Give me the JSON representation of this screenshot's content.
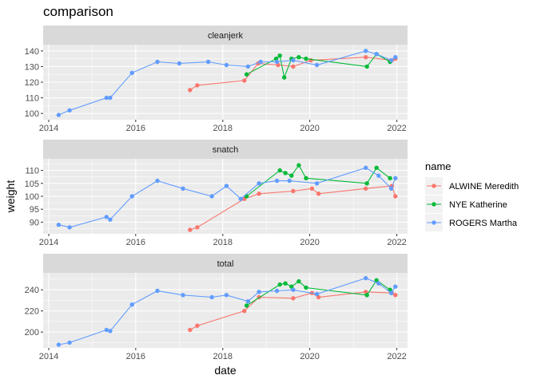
{
  "chart_data": {
    "type": "line",
    "title": "comparison",
    "xlabel": "date",
    "ylabel": "weight",
    "x_ticks": [
      "2014",
      "2016",
      "2018",
      "2020",
      "2022"
    ],
    "xlim": [
      "2013-11-15",
      "2022-04-01"
    ],
    "grid": true,
    "legend": {
      "title": "name",
      "placement": "right"
    },
    "series_styles": [
      {
        "name": "ALWINE Meredith",
        "color": "#F8766D"
      },
      {
        "name": "NYE Katherine",
        "color": "#00BA38"
      },
      {
        "name": "ROGERS Martha",
        "color": "#619CFF"
      }
    ],
    "panels": [
      {
        "strip": "cleanjerk",
        "ylim": [
          96,
          144
        ],
        "y_ticks": [
          100,
          110,
          120,
          130,
          140
        ],
        "series": [
          {
            "name": "ALWINE Meredith",
            "points": [
              [
                "2017-04-01",
                115
              ],
              [
                "2017-06-01",
                118
              ],
              [
                "2018-07-01",
                121
              ],
              [
                "2018-10-25",
                132
              ],
              [
                "2019-04-10",
                131
              ],
              [
                "2019-08-15",
                130
              ],
              [
                "2020-01-10",
                134
              ],
              [
                "2021-04-15",
                136
              ],
              [
                "2021-11-20",
                134
              ],
              [
                "2021-12-20",
                135
              ]
            ]
          },
          {
            "name": "NYE Katherine",
            "points": [
              [
                "2018-07-20",
                125
              ],
              [
                "2019-03-25",
                135
              ],
              [
                "2019-04-25",
                137
              ],
              [
                "2019-06-01",
                123
              ],
              [
                "2019-08-01",
                135
              ],
              [
                "2019-10-01",
                136
              ],
              [
                "2019-12-01",
                135
              ],
              [
                "2021-04-25",
                130
              ],
              [
                "2021-07-15",
                138
              ],
              [
                "2021-11-05",
                133
              ]
            ]
          },
          {
            "name": "ROGERS Martha",
            "points": [
              [
                "2014-03-25",
                99
              ],
              [
                "2014-06-25",
                102
              ],
              [
                "2015-05-01",
                110
              ],
              [
                "2015-06-01",
                110
              ],
              [
                "2015-12-01",
                126
              ],
              [
                "2016-07-01",
                133
              ],
              [
                "2017-01-01",
                132
              ],
              [
                "2017-09-01",
                133
              ],
              [
                "2018-02-01",
                131
              ],
              [
                "2018-08-01",
                130
              ],
              [
                "2018-11-15",
                133
              ],
              [
                "2019-04-01",
                133
              ],
              [
                "2019-08-15",
                134
              ],
              [
                "2020-03-01",
                131
              ],
              [
                "2021-04-15",
                140
              ],
              [
                "2021-07-15",
                138
              ],
              [
                "2021-11-15",
                134
              ],
              [
                "2021-12-20",
                136
              ]
            ]
          }
        ]
      },
      {
        "strip": "snatch",
        "ylim": [
          85.5,
          114.5
        ],
        "y_ticks": [
          90,
          95,
          100,
          105,
          110
        ],
        "series": [
          {
            "name": "ALWINE Meredith",
            "points": [
              [
                "2017-04-01",
                87
              ],
              [
                "2017-06-01",
                88
              ],
              [
                "2018-07-01",
                99
              ],
              [
                "2018-11-01",
                101
              ],
              [
                "2019-08-15",
                102
              ],
              [
                "2020-01-20",
                103
              ],
              [
                "2020-03-15",
                101
              ],
              [
                "2021-04-15",
                103
              ],
              [
                "2021-11-20",
                104
              ],
              [
                "2021-12-20",
                100
              ]
            ]
          },
          {
            "name": "NYE Katherine",
            "points": [
              [
                "2018-07-20",
                100
              ],
              [
                "2019-04-25",
                110
              ],
              [
                "2019-06-10",
                109
              ],
              [
                "2019-08-01",
                108
              ],
              [
                "2019-10-01",
                112
              ],
              [
                "2019-12-01",
                107
              ],
              [
                "2021-04-25",
                105
              ],
              [
                "2021-07-15",
                111
              ],
              [
                "2021-11-05",
                107
              ]
            ]
          },
          {
            "name": "ROGERS Martha",
            "points": [
              [
                "2014-03-25",
                89
              ],
              [
                "2014-06-25",
                88
              ],
              [
                "2015-05-01",
                92
              ],
              [
                "2015-06-01",
                91
              ],
              [
                "2015-12-01",
                100
              ],
              [
                "2016-07-01",
                106
              ],
              [
                "2017-02-01",
                103
              ],
              [
                "2017-10-01",
                100
              ],
              [
                "2018-02-01",
                104
              ],
              [
                "2018-06-01",
                99
              ],
              [
                "2018-11-01",
                105
              ],
              [
                "2019-04-01",
                106
              ],
              [
                "2019-07-15",
                106
              ],
              [
                "2020-03-01",
                105
              ],
              [
                "2021-04-15",
                111
              ],
              [
                "2021-08-01",
                108
              ],
              [
                "2021-11-15",
                103
              ],
              [
                "2021-12-20",
                107
              ]
            ]
          }
        ]
      },
      {
        "strip": "total",
        "ylim": [
          185,
          256
        ],
        "y_ticks": [
          200,
          220,
          240
        ],
        "series": [
          {
            "name": "ALWINE Meredith",
            "points": [
              [
                "2017-04-01",
                202
              ],
              [
                "2017-06-01",
                206
              ],
              [
                "2018-07-01",
                220
              ],
              [
                "2018-11-01",
                233
              ],
              [
                "2019-08-15",
                232
              ],
              [
                "2020-01-20",
                237
              ],
              [
                "2020-03-15",
                233
              ],
              [
                "2021-04-15",
                238
              ],
              [
                "2021-11-20",
                237
              ],
              [
                "2021-12-20",
                235
              ]
            ]
          },
          {
            "name": "NYE Katherine",
            "points": [
              [
                "2018-07-20",
                225
              ],
              [
                "2019-04-25",
                245
              ],
              [
                "2019-06-10",
                246
              ],
              [
                "2019-08-01",
                243
              ],
              [
                "2019-10-01",
                248
              ],
              [
                "2019-12-01",
                242
              ],
              [
                "2021-04-25",
                235
              ],
              [
                "2021-07-15",
                249
              ],
              [
                "2021-11-05",
                240
              ]
            ]
          },
          {
            "name": "ROGERS Martha",
            "points": [
              [
                "2014-03-25",
                188
              ],
              [
                "2014-06-25",
                190
              ],
              [
                "2015-05-01",
                202
              ],
              [
                "2015-06-01",
                201
              ],
              [
                "2015-12-01",
                226
              ],
              [
                "2016-07-01",
                239
              ],
              [
                "2017-02-01",
                235
              ],
              [
                "2017-10-01",
                233
              ],
              [
                "2018-02-01",
                235
              ],
              [
                "2018-08-01",
                229
              ],
              [
                "2018-11-01",
                238
              ],
              [
                "2019-04-01",
                239
              ],
              [
                "2019-08-15",
                240
              ],
              [
                "2020-03-01",
                236
              ],
              [
                "2021-04-15",
                251
              ],
              [
                "2021-08-01",
                246
              ],
              [
                "2021-11-15",
                237
              ],
              [
                "2021-12-20",
                243
              ]
            ]
          }
        ]
      }
    ]
  }
}
